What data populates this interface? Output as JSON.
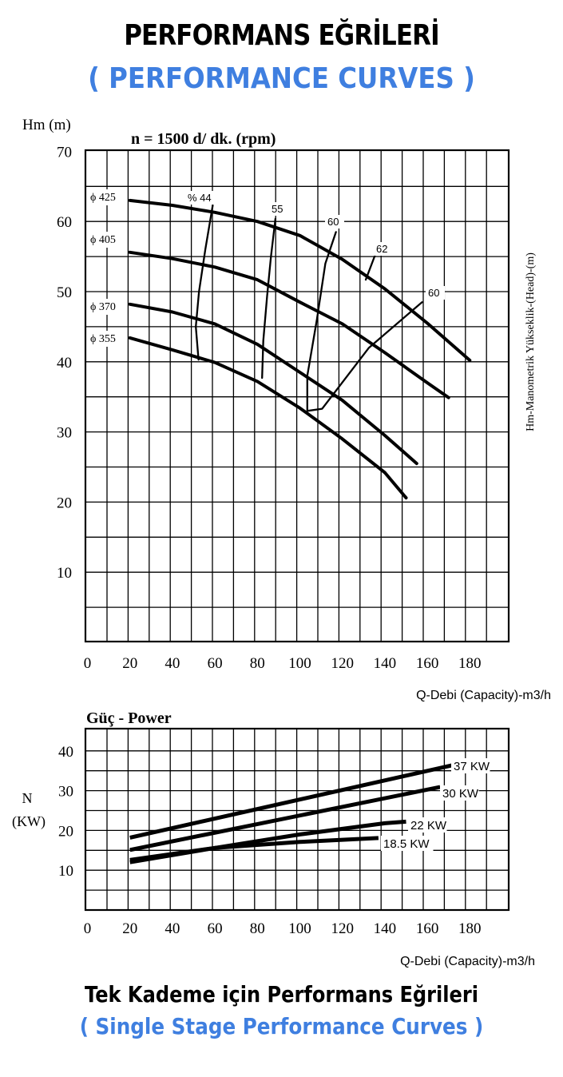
{
  "header": {
    "title": "PERFORMANS EĞRİLERİ",
    "subtitle": "( PERFORMANCE CURVES )"
  },
  "footer": {
    "title": "Tek Kademe için Performans Eğrileri",
    "subtitle": "( Single Stage Performance Curves )"
  },
  "colors": {
    "accent": "#3f7fe0",
    "ink": "#000000"
  },
  "chart_data": [
    {
      "type": "line",
      "title": "n = 1500 d/ dk.  (rpm)",
      "ylabel_top": "Hm (m)",
      "ylabel_right": "Hm-Manometrik Yükseklik-(Head)-(m)",
      "xlabel": "Q-Debi (Capacity)-m3/h",
      "xlim": [
        0,
        200
      ],
      "ylim": [
        0,
        70
      ],
      "xticks": [
        "0",
        "20",
        "40",
        "60",
        "80",
        "100",
        "120",
        "140",
        "160",
        "180"
      ],
      "yticks": [
        "10",
        "20",
        "30",
        "40",
        "50",
        "60",
        "70"
      ],
      "grid": true,
      "series": [
        {
          "name": "ϕ 425",
          "x": [
            20,
            40,
            60,
            80,
            100,
            120,
            140,
            160,
            180
          ],
          "y": [
            63,
            62.3,
            61.3,
            60,
            58,
            54.6,
            50.4,
            45.5,
            40.2
          ]
        },
        {
          "name": "ϕ 405",
          "x": [
            20,
            40,
            60,
            80,
            100,
            120,
            140,
            160,
            170
          ],
          "y": [
            55.6,
            54.7,
            53.5,
            51.7,
            48.5,
            45.4,
            41.3,
            37,
            34.9
          ]
        },
        {
          "name": "ϕ 370",
          "x": [
            20,
            40,
            60,
            80,
            100,
            120,
            140,
            155
          ],
          "y": [
            48.2,
            47.1,
            45.4,
            42.5,
            38.5,
            34.5,
            29.5,
            25.5
          ]
        },
        {
          "name": "ϕ 355",
          "x": [
            20,
            40,
            60,
            80,
            100,
            120,
            140,
            150
          ],
          "y": [
            43.4,
            41.7,
            39.9,
            37.2,
            33.4,
            29,
            24.2,
            20.6
          ]
        }
      ],
      "efficiency_labels": [
        "% 44",
        "55",
        "60",
        "62",
        "60"
      ],
      "efficiency_curves": [
        {
          "label": "% 44",
          "x": [
            59,
            55.5,
            52.5,
            51,
            52.3
          ],
          "y": [
            62.3,
            56,
            50,
            45,
            40.3
          ]
        },
        {
          "label": "55",
          "x": [
            88.5,
            86.4,
            84.6,
            82.8,
            82.2
          ],
          "y": [
            60.4,
            55,
            49.4,
            43,
            37.7
          ]
        },
        {
          "label": "60",
          "x": [
            117,
            112,
            108,
            103.5,
            103.5,
            110.5,
            132.5,
            157.5
          ],
          "y": [
            58.5,
            54,
            46,
            38,
            33,
            33.3,
            42,
            48.5
          ]
        },
        {
          "label": "62",
          "x": [
            131,
            136
          ],
          "y": [
            51.7,
            55.7
          ]
        }
      ]
    },
    {
      "type": "line",
      "title": "Güç - Power",
      "ylabel": "N (KW)",
      "xlabel": "Q-Debi (Capacity)-m3/h",
      "xlim": [
        0,
        200
      ],
      "ylim": [
        0,
        45
      ],
      "xticks": [
        "0",
        "20",
        "40",
        "60",
        "80",
        "100",
        "120",
        "140",
        "160",
        "180"
      ],
      "yticks": [
        "10",
        "20",
        "30",
        "40"
      ],
      "grid": true,
      "series": [
        {
          "name": "37 KW",
          "x": [
            20,
            172
          ],
          "y": [
            18.2,
            36.4
          ]
        },
        {
          "name": "30 KW",
          "x": [
            20,
            166
          ],
          "y": [
            15.1,
            30.9
          ]
        },
        {
          "name": "22 KW",
          "x": [
            20,
            60,
            100,
            140,
            150
          ],
          "y": [
            12,
            15.6,
            19,
            21.8,
            22.2
          ]
        },
        {
          "name": "18.5 KW",
          "x": [
            20,
            60,
            100,
            137
          ],
          "y": [
            12.6,
            15.6,
            17.1,
            18.1
          ]
        }
      ]
    }
  ]
}
